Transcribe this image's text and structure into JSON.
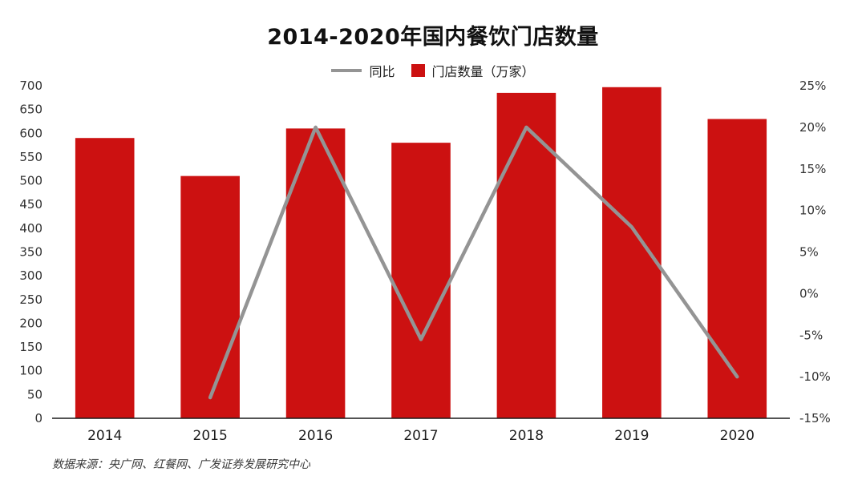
{
  "title": "2014-2020年国内餐饮门店数量",
  "legend": {
    "line_label": "同比",
    "bar_label": "门店数量（万家）"
  },
  "source": "数据来源：央广网、红餐网、广发证券发展研究中心",
  "chart_data": {
    "type": "bar+line",
    "title": "2014-2020年国内餐饮门店数量",
    "categories": [
      "2014",
      "2015",
      "2016",
      "2017",
      "2018",
      "2019",
      "2020"
    ],
    "series": [
      {
        "name": "门店数量（万家）",
        "type": "bar",
        "axis": "left",
        "color": "#cc1111",
        "values": [
          590,
          510,
          610,
          580,
          685,
          697,
          630
        ]
      },
      {
        "name": "同比",
        "type": "line",
        "axis": "right",
        "color": "#949494",
        "unit": "%",
        "values": [
          null,
          -12.5,
          20,
          -5.5,
          20,
          8,
          -10
        ]
      }
    ],
    "left_axis": {
      "min": 0,
      "max": 700,
      "step": 50
    },
    "right_axis": {
      "min": -15,
      "max": 25,
      "step": 5,
      "suffix": "%"
    },
    "grid": false,
    "legend_position": "top",
    "xlabel": "",
    "ylabel_left": "门店数量（万家）",
    "ylabel_right": "同比(%)"
  }
}
